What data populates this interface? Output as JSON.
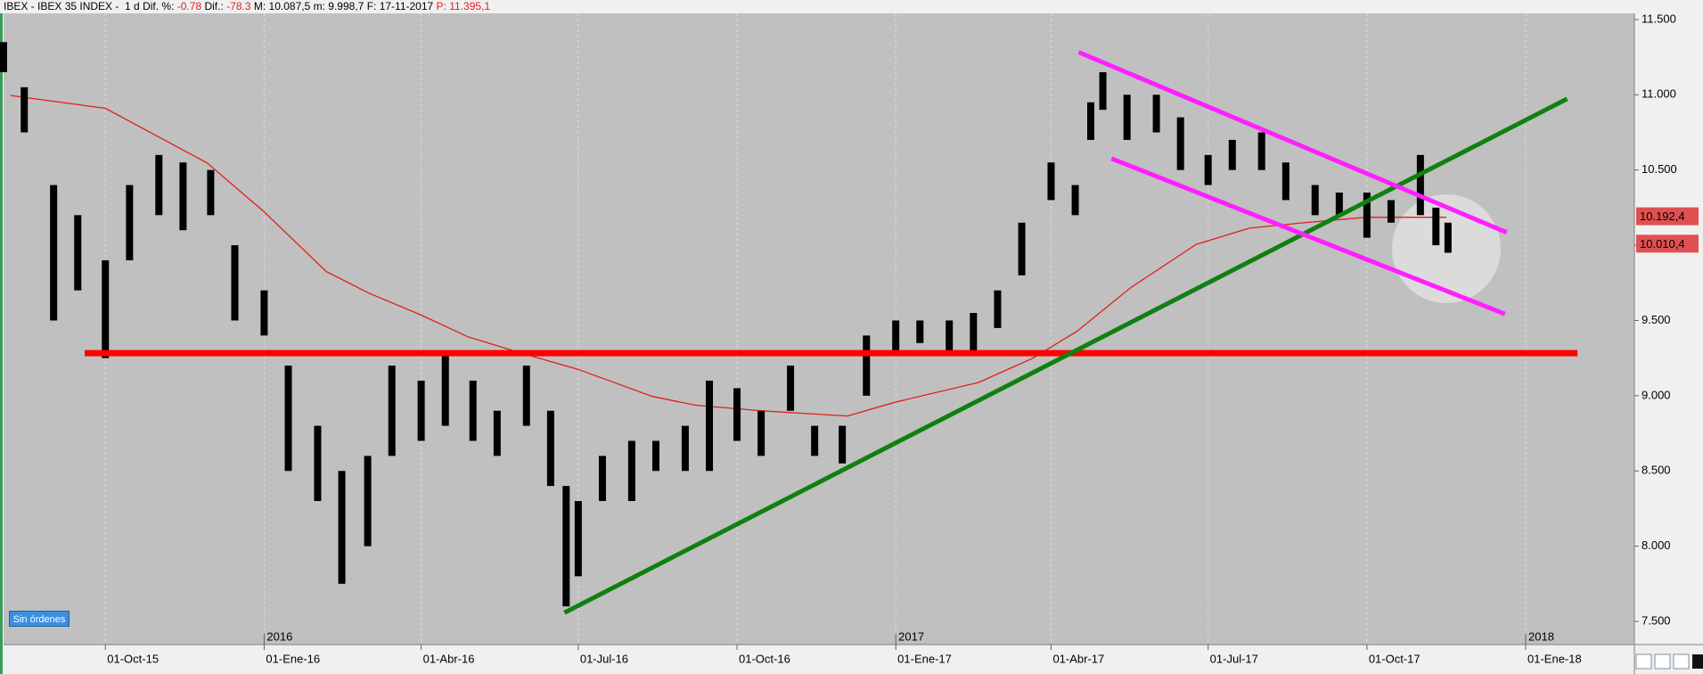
{
  "header": {
    "symbol": "IBEX - IBEX 35 INDEX -  1 d",
    "items": [
      {
        "label": "Dif. %:",
        "value": "-0.78"
      },
      {
        "label": "Dif.:",
        "value": "-78.3"
      },
      {
        "label": "M:",
        "value": "10.087,5"
      },
      {
        "label": "m:",
        "value": "9.998,7"
      },
      {
        "label": "F:",
        "value": "17-11-2017"
      },
      {
        "label": "P:",
        "value": "11.395,1"
      }
    ]
  },
  "button": "Sin órdenes",
  "chart_data": {
    "type": "hilo",
    "color": "#000000",
    "background": "#c0c0c0",
    "grid": "x",
    "xlim": [
      "2015-08-03",
      "2018-03-05"
    ],
    "ylim": [
      7346,
      11541
    ],
    "xticks": [
      {
        "value": "2015-10-01",
        "label": "01-Oct-15"
      },
      {
        "value": "2016-01-01",
        "label": "01-Ene-16"
      },
      {
        "value": "2016-04-01",
        "label": "01-Abr-16"
      },
      {
        "value": "2016-07-01",
        "label": "01-Jul-16"
      },
      {
        "value": "2016-10-01",
        "label": "01-Oct-16"
      },
      {
        "value": "2017-01-01",
        "label": "01-Ene-17"
      },
      {
        "value": "2017-04-01",
        "label": "01-Abr-17"
      },
      {
        "value": "2017-07-01",
        "label": "01-Jul-17"
      },
      {
        "value": "2017-10-01",
        "label": "01-Oct-17"
      },
      {
        "value": "2018-01-01",
        "label": "01-Ene-18"
      }
    ],
    "year_ticks": [
      {
        "value": "2016-01-01",
        "label": "2016"
      },
      {
        "value": "2017-01-01",
        "label": "2017"
      },
      {
        "value": "2018-01-01",
        "label": "2018"
      }
    ],
    "yticks": [
      {
        "value": 7500,
        "label": "7.500"
      },
      {
        "value": 8000,
        "label": "8.000"
      },
      {
        "value": 8500,
        "label": "8.500"
      },
      {
        "value": 9000,
        "label": "9.000"
      },
      {
        "value": 9500,
        "label": "9.500"
      },
      {
        "value": 10000,
        "label": "10.000"
      },
      {
        "value": 10500,
        "label": "10.500"
      },
      {
        "value": 11000,
        "label": "11.000"
      },
      {
        "value": 11500,
        "label": "11.500"
      }
    ],
    "x": [
      "2015-08-03",
      "2015-08-15",
      "2015-09-01",
      "2015-09-15",
      "2015-10-01",
      "2015-10-15",
      "2015-11-01",
      "2015-11-15",
      "2015-12-01",
      "2015-12-15",
      "2016-01-01",
      "2016-01-15",
      "2016-02-01",
      "2016-02-15",
      "2016-03-01",
      "2016-03-15",
      "2016-04-01",
      "2016-04-15",
      "2016-05-01",
      "2016-05-15",
      "2016-06-01",
      "2016-06-15",
      "2016-06-24",
      "2016-07-01",
      "2016-07-15",
      "2016-08-01",
      "2016-08-15",
      "2016-09-01",
      "2016-09-15",
      "2016-10-01",
      "2016-10-15",
      "2016-11-01",
      "2016-11-15",
      "2016-12-01",
      "2016-12-15",
      "2017-01-01",
      "2017-01-15",
      "2017-02-01",
      "2017-02-15",
      "2017-03-01",
      "2017-03-15",
      "2017-04-01",
      "2017-04-15",
      "2017-04-24",
      "2017-05-01",
      "2017-05-15",
      "2017-06-01",
      "2017-06-15",
      "2017-07-01",
      "2017-07-15",
      "2017-08-01",
      "2017-08-15",
      "2017-09-01",
      "2017-09-15",
      "2017-10-01",
      "2017-10-15",
      "2017-11-01",
      "2017-11-10",
      "2017-11-17"
    ],
    "high": [
      11350,
      11050,
      10400,
      10200,
      9900,
      10400,
      10600,
      10550,
      10500,
      10000,
      9700,
      9200,
      8800,
      8500,
      8600,
      9200,
      9100,
      9300,
      9100,
      8900,
      9200,
      8900,
      8400,
      8300,
      8600,
      8700,
      8700,
      8800,
      9100,
      9050,
      8900,
      9200,
      8800,
      8800,
      9400,
      9500,
      9500,
      9500,
      9550,
      9700,
      10150,
      10550,
      10400,
      10950,
      11150,
      11000,
      11000,
      10850,
      10600,
      10700,
      10750,
      10550,
      10400,
      10350,
      10350,
      10300,
      10600,
      10250,
      10150
    ],
    "low": [
      11150,
      10750,
      9500,
      9700,
      9250,
      9900,
      10200,
      10100,
      10200,
      9500,
      9400,
      8500,
      8300,
      7750,
      8000,
      8600,
      8700,
      8800,
      8700,
      8600,
      8800,
      8400,
      7600,
      7800,
      8300,
      8300,
      8500,
      8500,
      8500,
      8700,
      8600,
      8900,
      8600,
      8550,
      9000,
      9300,
      9350,
      9300,
      9300,
      9450,
      9800,
      10300,
      10200,
      10700,
      10900,
      10700,
      10750,
      10500,
      10400,
      10500,
      10500,
      10300,
      10200,
      10200,
      10050,
      10150,
      10200,
      10000,
      9950
    ],
    "moving_average": {
      "color": "#e0201a",
      "x": [
        "2015-08-07",
        "2015-10-01",
        "2015-11-29",
        "2016-01-01",
        "2016-02-06",
        "2016-03-02",
        "2016-04-01",
        "2016-04-28",
        "2016-05-29",
        "2016-07-01",
        "2016-08-13",
        "2016-09-07",
        "2016-10-15",
        "2016-12-04",
        "2017-01-01",
        "2017-02-18",
        "2017-03-21",
        "2017-04-16",
        "2017-05-17",
        "2017-06-24",
        "2017-07-25",
        "2017-08-26",
        "2017-10-01",
        "2017-11-16"
      ],
      "values": [
        10995,
        10910,
        10547,
        10222,
        9825,
        9680,
        9536,
        9392,
        9283,
        9175,
        8995,
        8937,
        8900,
        8865,
        8958,
        9088,
        9247,
        9428,
        9717,
        10005,
        10114,
        10150,
        10186,
        10186
      ]
    },
    "lines": [
      {
        "color": "#ff0000",
        "width": 7,
        "x": [
          "2015-09-19",
          "2018-01-31"
        ],
        "y": [
          9283,
          9283
        ]
      },
      {
        "color": "#108010",
        "width": 5,
        "x": [
          "2016-06-23",
          "2018-01-25"
        ],
        "y": [
          7558,
          10973
        ]
      },
      {
        "color": "#ff20ff",
        "width": 5,
        "x": [
          "2017-04-17",
          "2017-12-21"
        ],
        "y": [
          11283,
          10085
        ]
      },
      {
        "color": "#ff20ff",
        "width": 5,
        "x": [
          "2017-05-06",
          "2017-12-20"
        ],
        "y": [
          10576,
          9543
        ]
      }
    ],
    "price_markers": [
      {
        "value": 10192.4,
        "label": "10.192,4",
        "color": "#e05050"
      },
      {
        "value": 10010.4,
        "label": "10.010,4",
        "color": "#e05050"
      }
    ]
  }
}
